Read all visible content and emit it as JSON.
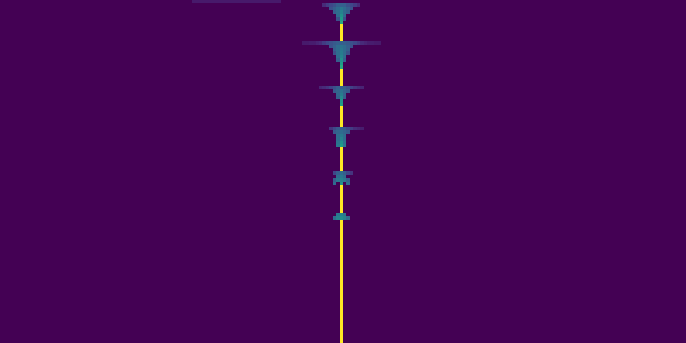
{
  "chart_data": {
    "type": "heatmap",
    "xlim": [
      0,
      200
    ],
    "ylim": [
      0,
      100
    ],
    "tick_labels": false,
    "grid": false,
    "color": "viridis",
    "color_range": [
      0,
      1
    ],
    "cells": [
      [
        56,
        0,
        0.07
      ],
      [
        57,
        0,
        0.07
      ],
      [
        58,
        0,
        0.07
      ],
      [
        59,
        0,
        0.07
      ],
      [
        60,
        0,
        0.07
      ],
      [
        61,
        0,
        0.07
      ],
      [
        62,
        0,
        0.07
      ],
      [
        63,
        0,
        0.07
      ],
      [
        64,
        0,
        0.07
      ],
      [
        65,
        0,
        0.07
      ],
      [
        66,
        0,
        0.07
      ],
      [
        67,
        0,
        0.07
      ],
      [
        68,
        0,
        0.07
      ],
      [
        69,
        0,
        0.07
      ],
      [
        70,
        0,
        0.07
      ],
      [
        71,
        0,
        0.07
      ],
      [
        72,
        0,
        0.07
      ],
      [
        73,
        0,
        0.07
      ],
      [
        74,
        0,
        0.07
      ],
      [
        75,
        0,
        0.07
      ],
      [
        76,
        0,
        0.07
      ],
      [
        77,
        0,
        0.07
      ],
      [
        78,
        0,
        0.07
      ],
      [
        79,
        0,
        0.07
      ],
      [
        80,
        0,
        0.07
      ],
      [
        81,
        0,
        0.07
      ],
      [
        94,
        1,
        0.12
      ],
      [
        95,
        1,
        0.18
      ],
      [
        96,
        1,
        0.22
      ],
      [
        97,
        1,
        0.25
      ],
      [
        98,
        1,
        0.3
      ],
      [
        99,
        1,
        0.3
      ],
      [
        100,
        1,
        0.3
      ],
      [
        101,
        1,
        0.25
      ],
      [
        102,
        1,
        0.22
      ],
      [
        103,
        1,
        0.18
      ],
      [
        104,
        1,
        0.12
      ],
      [
        96,
        2,
        0.25
      ],
      [
        97,
        2,
        0.3
      ],
      [
        98,
        2,
        0.35
      ],
      [
        99,
        2,
        0.4
      ],
      [
        100,
        2,
        0.35
      ],
      [
        101,
        2,
        0.3
      ],
      [
        102,
        2,
        0.25
      ],
      [
        97,
        3,
        0.3
      ],
      [
        98,
        3,
        0.35
      ],
      [
        99,
        3,
        0.45
      ],
      [
        100,
        3,
        0.35
      ],
      [
        101,
        3,
        0.3
      ],
      [
        98,
        4,
        0.35
      ],
      [
        99,
        4,
        0.5
      ],
      [
        100,
        4,
        0.35
      ],
      [
        98,
        5,
        0.25
      ],
      [
        99,
        5,
        0.55
      ],
      [
        100,
        5,
        0.25
      ],
      [
        99,
        6,
        0.6
      ],
      [
        99,
        7,
        1
      ],
      [
        99,
        8,
        1
      ],
      [
        99,
        9,
        1
      ],
      [
        99,
        10,
        1
      ],
      [
        99,
        11,
        1
      ],
      [
        88,
        12,
        0.07
      ],
      [
        89,
        12,
        0.07
      ],
      [
        90,
        12,
        0.08
      ],
      [
        91,
        12,
        0.08
      ],
      [
        92,
        12,
        0.1
      ],
      [
        93,
        12,
        0.12
      ],
      [
        94,
        12,
        0.18
      ],
      [
        95,
        12,
        0.22
      ],
      [
        96,
        12,
        0.25
      ],
      [
        97,
        12,
        0.28
      ],
      [
        98,
        12,
        0.3
      ],
      [
        99,
        12,
        0.3
      ],
      [
        100,
        12,
        0.3
      ],
      [
        101,
        12,
        0.28
      ],
      [
        102,
        12,
        0.25
      ],
      [
        103,
        12,
        0.22
      ],
      [
        104,
        12,
        0.18
      ],
      [
        105,
        12,
        0.12
      ],
      [
        106,
        12,
        0.1
      ],
      [
        107,
        12,
        0.08
      ],
      [
        108,
        12,
        0.08
      ],
      [
        109,
        12,
        0.07
      ],
      [
        110,
        12,
        0.07
      ],
      [
        96,
        13,
        0.25
      ],
      [
        97,
        13,
        0.3
      ],
      [
        98,
        13,
        0.35
      ],
      [
        99,
        13,
        0.38
      ],
      [
        100,
        13,
        0.35
      ],
      [
        101,
        13,
        0.3
      ],
      [
        102,
        13,
        0.25
      ],
      [
        97,
        14,
        0.3
      ],
      [
        98,
        14,
        0.35
      ],
      [
        99,
        14,
        0.4
      ],
      [
        100,
        14,
        0.35
      ],
      [
        101,
        14,
        0.3
      ],
      [
        97,
        15,
        0.25
      ],
      [
        98,
        15,
        0.35
      ],
      [
        99,
        15,
        0.42
      ],
      [
        100,
        15,
        0.35
      ],
      [
        101,
        15,
        0.25
      ],
      [
        98,
        16,
        0.35
      ],
      [
        99,
        16,
        0.45
      ],
      [
        100,
        16,
        0.35
      ],
      [
        98,
        17,
        0.3
      ],
      [
        99,
        17,
        0.5
      ],
      [
        100,
        17,
        0.3
      ],
      [
        99,
        18,
        0.55
      ],
      [
        99,
        19,
        0.6
      ],
      [
        99,
        20,
        1
      ],
      [
        99,
        21,
        1
      ],
      [
        99,
        22,
        1
      ],
      [
        99,
        23,
        1
      ],
      [
        99,
        24,
        1
      ],
      [
        93,
        25,
        0.1
      ],
      [
        94,
        25,
        0.12
      ],
      [
        95,
        25,
        0.15
      ],
      [
        96,
        25,
        0.2
      ],
      [
        97,
        25,
        0.25
      ],
      [
        98,
        25,
        0.3
      ],
      [
        99,
        25,
        0.3
      ],
      [
        100,
        25,
        0.3
      ],
      [
        101,
        25,
        0.25
      ],
      [
        102,
        25,
        0.2
      ],
      [
        103,
        25,
        0.15
      ],
      [
        104,
        25,
        0.12
      ],
      [
        105,
        25,
        0.1
      ],
      [
        97,
        26,
        0.28
      ],
      [
        98,
        26,
        0.32
      ],
      [
        99,
        26,
        0.38
      ],
      [
        100,
        26,
        0.32
      ],
      [
        101,
        26,
        0.28
      ],
      [
        98,
        27,
        0.32
      ],
      [
        99,
        27,
        0.42
      ],
      [
        100,
        27,
        0.32
      ],
      [
        98,
        28,
        0.3
      ],
      [
        99,
        28,
        0.48
      ],
      [
        100,
        28,
        0.3
      ],
      [
        99,
        29,
        0.52
      ],
      [
        99,
        30,
        0.56
      ],
      [
        99,
        31,
        1
      ],
      [
        99,
        32,
        1
      ],
      [
        99,
        33,
        1
      ],
      [
        99,
        34,
        1
      ],
      [
        99,
        35,
        1
      ],
      [
        99,
        36,
        1
      ],
      [
        96,
        37,
        0.15
      ],
      [
        97,
        37,
        0.22
      ],
      [
        98,
        37,
        0.28
      ],
      [
        99,
        37,
        0.3
      ],
      [
        100,
        37,
        0.28
      ],
      [
        101,
        37,
        0.22
      ],
      [
        102,
        37,
        0.18
      ],
      [
        103,
        37,
        0.12
      ],
      [
        104,
        37,
        0.1
      ],
      [
        105,
        37,
        0.08
      ],
      [
        97,
        38,
        0.28
      ],
      [
        98,
        38,
        0.32
      ],
      [
        99,
        38,
        0.35
      ],
      [
        100,
        38,
        0.32
      ],
      [
        101,
        38,
        0.28
      ],
      [
        98,
        39,
        0.35
      ],
      [
        99,
        39,
        0.4
      ],
      [
        100,
        39,
        0.35
      ],
      [
        98,
        40,
        0.35
      ],
      [
        99,
        40,
        0.45
      ],
      [
        100,
        40,
        0.35
      ],
      [
        98,
        41,
        0.38
      ],
      [
        99,
        41,
        0.5
      ],
      [
        100,
        41,
        0.38
      ],
      [
        98,
        42,
        0.4
      ],
      [
        99,
        42,
        0.55
      ],
      [
        100,
        42,
        0.4
      ],
      [
        99,
        43,
        1
      ],
      [
        99,
        44,
        1
      ],
      [
        99,
        45,
        1
      ],
      [
        99,
        46,
        1
      ],
      [
        99,
        47,
        1
      ],
      [
        99,
        48,
        1
      ],
      [
        99,
        49,
        1
      ],
      [
        97,
        50,
        0.22
      ],
      [
        98,
        50,
        0.3
      ],
      [
        99,
        50,
        0.35
      ],
      [
        100,
        50,
        0.3
      ],
      [
        101,
        50,
        0.22
      ],
      [
        102,
        50,
        0.15
      ],
      [
        98,
        51,
        0.35
      ],
      [
        99,
        51,
        0.4
      ],
      [
        100,
        51,
        0.35
      ],
      [
        97,
        52,
        0.3
      ],
      [
        98,
        52,
        0.4
      ],
      [
        99,
        52,
        0.45
      ],
      [
        100,
        52,
        0.4
      ],
      [
        101,
        52,
        0.3
      ],
      [
        97,
        53,
        0.35
      ],
      [
        99,
        53,
        0.5
      ],
      [
        101,
        53,
        0.35
      ],
      [
        99,
        54,
        1
      ],
      [
        99,
        55,
        1
      ],
      [
        99,
        56,
        1
      ],
      [
        99,
        57,
        1
      ],
      [
        99,
        58,
        1
      ],
      [
        99,
        59,
        1
      ],
      [
        99,
        60,
        1
      ],
      [
        99,
        61,
        1
      ],
      [
        98,
        62,
        0.4
      ],
      [
        99,
        62,
        0.45
      ],
      [
        100,
        62,
        0.4
      ],
      [
        97,
        63,
        0.35
      ],
      [
        98,
        63,
        0.45
      ],
      [
        99,
        63,
        0.5
      ],
      [
        100,
        63,
        0.45
      ],
      [
        101,
        63,
        0.35
      ],
      [
        99,
        64,
        1
      ],
      [
        99,
        65,
        1
      ],
      [
        99,
        66,
        1
      ],
      [
        99,
        67,
        1
      ],
      [
        99,
        68,
        1
      ],
      [
        99,
        69,
        1
      ],
      [
        99,
        70,
        1
      ],
      [
        99,
        71,
        1
      ],
      [
        99,
        72,
        1
      ],
      [
        99,
        73,
        1
      ],
      [
        99,
        74,
        1
      ],
      [
        99,
        75,
        1
      ],
      [
        99,
        76,
        1
      ],
      [
        99,
        77,
        1
      ],
      [
        99,
        78,
        1
      ],
      [
        99,
        79,
        1
      ],
      [
        99,
        80,
        1
      ],
      [
        99,
        81,
        1
      ],
      [
        99,
        82,
        1
      ],
      [
        99,
        83,
        1
      ],
      [
        99,
        84,
        1
      ],
      [
        99,
        85,
        1
      ],
      [
        99,
        86,
        1
      ],
      [
        99,
        87,
        1
      ],
      [
        99,
        88,
        1
      ],
      [
        99,
        89,
        1
      ],
      [
        99,
        90,
        1
      ],
      [
        99,
        91,
        1
      ],
      [
        99,
        92,
        1
      ],
      [
        99,
        93,
        1
      ],
      [
        99,
        94,
        1
      ],
      [
        99,
        95,
        1
      ],
      [
        99,
        96,
        1
      ],
      [
        99,
        97,
        1
      ],
      [
        99,
        98,
        1
      ],
      [
        99,
        99,
        1
      ]
    ]
  }
}
